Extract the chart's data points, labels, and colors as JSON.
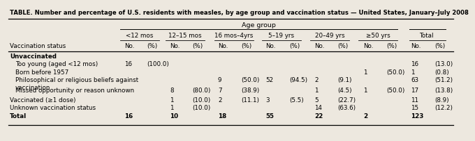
{
  "title": "TABLE. Number and percentage of U.S. residents with measles, by age group and vaccination status — United States, January–July 2008",
  "age_group_label": "Age group",
  "vaccination_status_label": "Vaccination status",
  "col_headers": [
    "<12 mos",
    "12–15 mos",
    "16 mos–4yrs",
    "5–19 yrs",
    "20–49 yrs",
    "≥50 yrs",
    "Total"
  ],
  "rows": [
    {
      "label": "Unvaccinated",
      "indent": 0,
      "bold": true,
      "cells": [
        null,
        null,
        null,
        null,
        null,
        null,
        null
      ]
    },
    {
      "label": "Too young (aged <12 mos)",
      "indent": 1,
      "bold": false,
      "cells": [
        {
          "n": "16",
          "p": "(100.0)"
        },
        null,
        null,
        null,
        null,
        null,
        {
          "n": "16",
          "p": "(13.0)"
        }
      ]
    },
    {
      "label": "Born before 1957",
      "indent": 1,
      "bold": false,
      "cells": [
        null,
        null,
        null,
        null,
        null,
        {
          "n": "1",
          "p": "(50.0)"
        },
        {
          "n": "1",
          "p": "(0.8)"
        }
      ]
    },
    {
      "label": "Philosophical or religious beliefs against\nvaccination",
      "indent": 1,
      "bold": false,
      "two_line": true,
      "cells": [
        null,
        null,
        {
          "n": "9",
          "p": "(50.0)"
        },
        {
          "n": "52",
          "p": "(94.5)"
        },
        {
          "n": "2",
          "p": "(9.1)"
        },
        null,
        {
          "n": "63",
          "p": "(51.2)"
        }
      ]
    },
    {
      "label": "Missed opportunity or reason unknown",
      "indent": 1,
      "bold": false,
      "cells": [
        null,
        {
          "n": "8",
          "p": "(80.0)"
        },
        {
          "n": "7",
          "p": "(38.9)"
        },
        null,
        {
          "n": "1",
          "p": "(4.5)"
        },
        {
          "n": "1",
          "p": "(50.0)"
        },
        {
          "n": "17",
          "p": "(13.8)"
        }
      ]
    },
    {
      "label": "Vaccinated (≥1 dose)",
      "indent": 0,
      "bold": false,
      "cells": [
        null,
        {
          "n": "1",
          "p": "(10.0)"
        },
        {
          "n": "2",
          "p": "(11.1)"
        },
        {
          "n": "3",
          "p": "(5.5)"
        },
        {
          "n": "5",
          "p": "(22.7)"
        },
        null,
        {
          "n": "11",
          "p": "(8.9)"
        }
      ]
    },
    {
      "label": "Unknown vaccination status",
      "indent": 0,
      "bold": false,
      "cells": [
        null,
        {
          "n": "1",
          "p": "(10.0)"
        },
        null,
        null,
        {
          "n": "14",
          "p": "(63.6)"
        },
        null,
        {
          "n": "15",
          "p": "(12.2)"
        }
      ]
    },
    {
      "label": "Total",
      "indent": 0,
      "bold": true,
      "cells": [
        {
          "n": "16",
          "p": null
        },
        {
          "n": "10",
          "p": null
        },
        {
          "n": "18",
          "p": null
        },
        {
          "n": "55",
          "p": null
        },
        {
          "n": "22",
          "p": null
        },
        {
          "n": "2",
          "p": null
        },
        {
          "n": "123",
          "p": null
        }
      ]
    }
  ],
  "bg_color": "#ede8df",
  "line_color": "black",
  "fs": 6.3,
  "title_fs": 6.1
}
